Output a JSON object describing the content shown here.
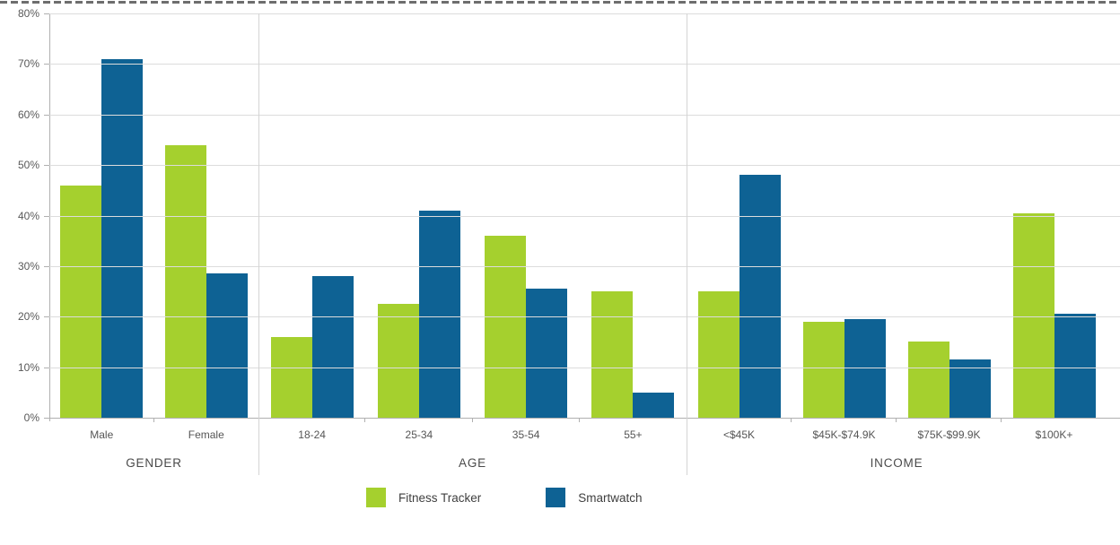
{
  "chart_data": {
    "type": "bar",
    "title": "",
    "xlabel": "",
    "ylabel": "",
    "ylim": [
      0,
      80
    ],
    "yticks": [
      "80%",
      "70%",
      "60%",
      "50%",
      "40%",
      "30%",
      "20%",
      "10%",
      "0%"
    ],
    "grid": true,
    "legend_position": "bottom",
    "series_meta": [
      {
        "name": "Fitness Tracker",
        "color": "#a5d02e"
      },
      {
        "name": "Smartwatch",
        "color": "#0e6294"
      }
    ],
    "sections": [
      {
        "label": "GENDER",
        "categories": [
          "Male",
          "Female"
        ],
        "series": [
          {
            "name": "Fitness Tracker",
            "values": [
              46,
              54
            ]
          },
          {
            "name": "Smartwatch",
            "values": [
              71,
              28.5
            ]
          }
        ]
      },
      {
        "label": "AGE",
        "categories": [
          "18-24",
          "25-34",
          "35-54",
          "55+"
        ],
        "series": [
          {
            "name": "Fitness Tracker",
            "values": [
              16,
              22.5,
              36,
              25
            ]
          },
          {
            "name": "Smartwatch",
            "values": [
              28,
              41,
              25.5,
              5
            ]
          }
        ]
      },
      {
        "label": "INCOME",
        "categories": [
          "<$45K",
          "$45K-$74.9K",
          "$75K-$99.9K",
          "$100K+"
        ],
        "series": [
          {
            "name": "Fitness Tracker",
            "values": [
              25,
              19,
              15,
              40.5
            ]
          },
          {
            "name": "Smartwatch",
            "values": [
              48,
              19.5,
              11.5,
              20.5
            ]
          }
        ]
      }
    ]
  }
}
